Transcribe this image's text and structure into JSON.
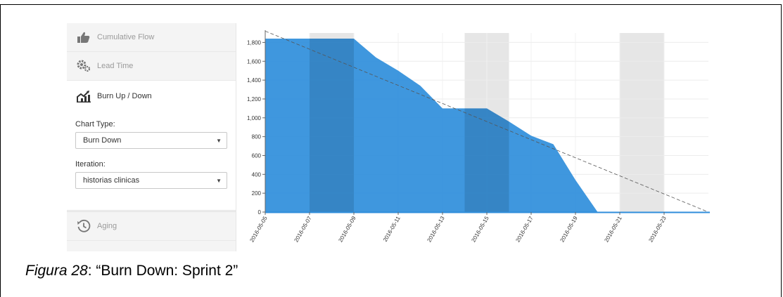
{
  "sidebar": {
    "items": [
      {
        "label": "Cumulative Flow",
        "icon": "thumbs-up-icon"
      },
      {
        "label": "Lead Time",
        "icon": "gears-icon"
      },
      {
        "label": "Burn Up / Down",
        "icon": "area-chart-icon"
      },
      {
        "label": "Aging",
        "icon": "clock-history-icon"
      }
    ],
    "panel": {
      "chart_type_label": "Chart Type:",
      "chart_type_value": "Burn Down",
      "iteration_label": "Iteration:",
      "iteration_value": "historias clinicas"
    }
  },
  "caption": {
    "prefix": "Figura 28",
    "text": ": “Burn Down: Sprint 2”"
  },
  "colors": {
    "area": "#2f8edb",
    "weekend": "#e6e6e6",
    "ideal_line": "#555555"
  },
  "chart_data": {
    "type": "area",
    "title": "",
    "xlabel": "",
    "ylabel": "",
    "ylim": [
      0,
      1900
    ],
    "yticks": [
      0,
      200,
      400,
      600,
      800,
      1000,
      1200,
      1400,
      1600,
      1800
    ],
    "ytick_labels": [
      "0",
      "200",
      "400",
      "600",
      "800",
      "1,000",
      "1,200",
      "1,400",
      "1,600",
      "1,800"
    ],
    "xlim": [
      "2016-05-05",
      "2016-05-25"
    ],
    "xtick_labels": [
      "2016-05-05",
      "2016-05-07",
      "2016-05-09",
      "2016-05-11",
      "2016-05-13",
      "2016-05-15",
      "2016-05-17",
      "2016-05-19",
      "2016-05-21",
      "2016-05-23"
    ],
    "weekend_bands": [
      [
        "2016-05-07",
        "2016-05-09"
      ],
      [
        "2016-05-14",
        "2016-05-16"
      ],
      [
        "2016-05-21",
        "2016-05-23"
      ]
    ],
    "ideal_line": {
      "start": [
        "2016-05-05",
        1920
      ],
      "end": [
        "2016-05-25",
        0
      ]
    },
    "series": [
      {
        "x": [
          "2016-05-05",
          "2016-05-06",
          "2016-05-07",
          "2016-05-08",
          "2016-05-09",
          "2016-05-10",
          "2016-05-11",
          "2016-05-12",
          "2016-05-13",
          "2016-05-14",
          "2016-05-15",
          "2016-05-16",
          "2016-05-17",
          "2016-05-18",
          "2016-05-19",
          "2016-05-20",
          "2016-05-21",
          "2016-05-22",
          "2016-05-23",
          "2016-05-24",
          "2016-05-25"
        ],
        "values": [
          1840,
          1840,
          1840,
          1840,
          1840,
          1640,
          1500,
          1340,
          1100,
          1100,
          1100,
          960,
          810,
          720,
          340,
          0,
          0,
          0,
          0,
          0,
          0
        ]
      }
    ]
  }
}
